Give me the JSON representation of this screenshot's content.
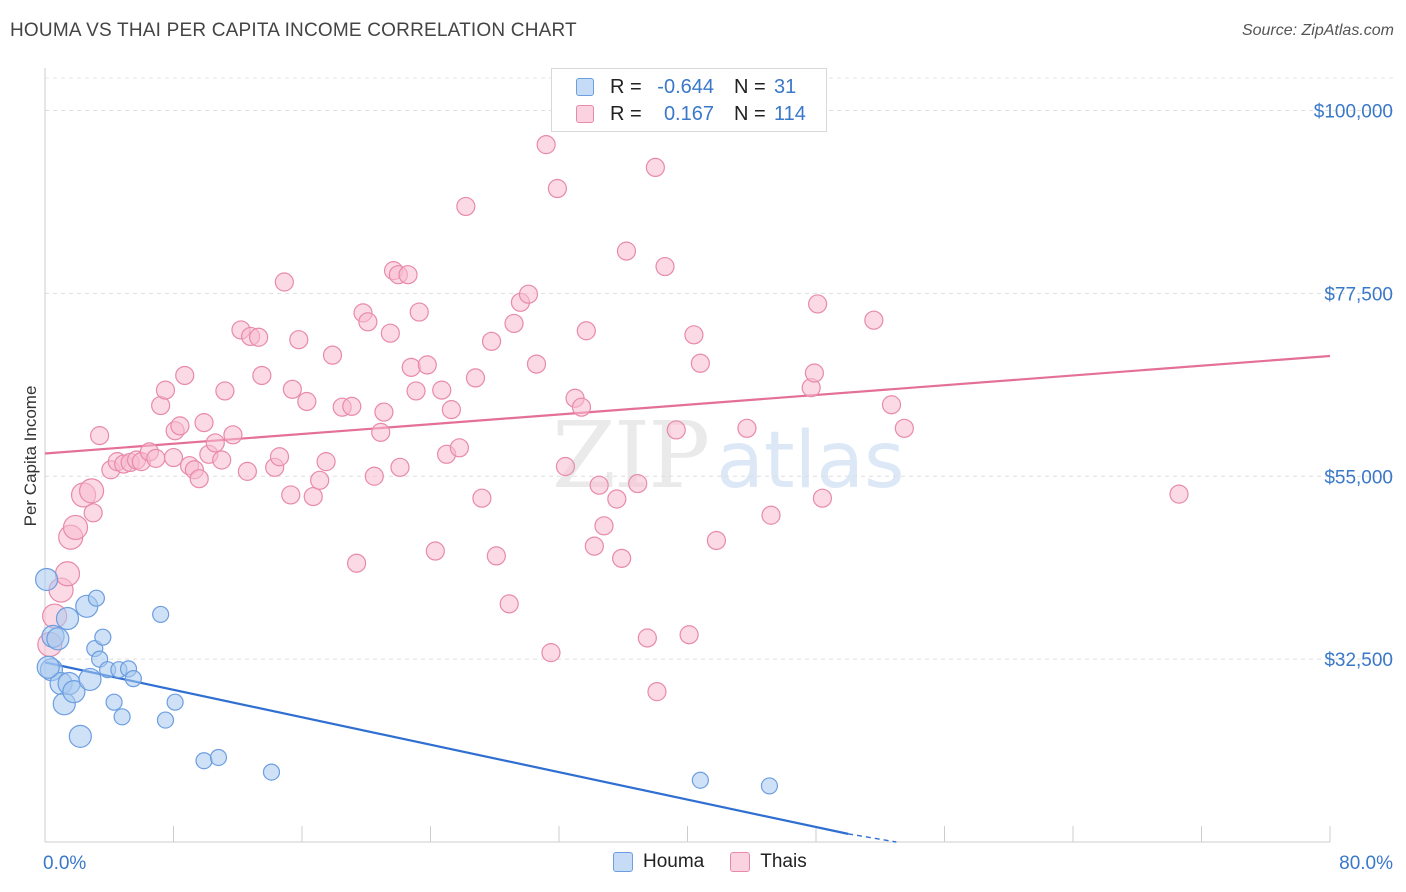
{
  "header": {
    "title": "HOUMA VS THAI PER CAPITA INCOME CORRELATION CHART",
    "source": "Source: ZipAtlas.com"
  },
  "watermark": {
    "zip": "ZIP",
    "atlas": "atlas"
  },
  "legend": {
    "rows": [
      {
        "r_label": "R =",
        "r_value": "-0.644",
        "n_label": "N =",
        "n_value": "31",
        "color": "#a8c8f0",
        "border": "#6c9ee0"
      },
      {
        "r_label": "R =",
        "r_value": "0.167",
        "n_label": "N =",
        "n_value": "114",
        "color": "#f8bcd0",
        "border": "#e88aa8"
      }
    ]
  },
  "bottom_legend": {
    "houma": "Houma",
    "thais": "Thais"
  },
  "chart_data": {
    "type": "scatter",
    "title": "HOUMA VS THAI PER CAPITA INCOME CORRELATION CHART",
    "xlabel": "",
    "ylabel": "Per Capita Income",
    "xlim": [
      0,
      80
    ],
    "ylim": [
      10000,
      104000
    ],
    "x_tick_labels": [
      "0.0%",
      "80.0%"
    ],
    "y_ticks": [
      32500,
      55000,
      77500,
      100000
    ],
    "y_tick_labels": [
      "$32,500",
      "$55,000",
      "$77,500",
      "$100,000"
    ],
    "grid": true,
    "legend_position": "top-center",
    "series": [
      {
        "name": "Houma",
        "color": "#6c9ee0",
        "fill": "#a8c8f0",
        "trend": {
          "x": [
            0,
            50,
            53
          ],
          "y": [
            32100,
            11000,
            10000
          ],
          "dashed_from": 50
        },
        "points": [
          [
            0.1,
            42300
          ],
          [
            0.4,
            31200
          ],
          [
            0.5,
            35300
          ],
          [
            0.8,
            35000
          ],
          [
            1.0,
            29500
          ],
          [
            1.2,
            27000
          ],
          [
            1.4,
            37500
          ],
          [
            1.5,
            29500
          ],
          [
            1.8,
            28500
          ],
          [
            2.2,
            23000
          ],
          [
            2.6,
            39000
          ],
          [
            2.8,
            30000
          ],
          [
            3.1,
            33800
          ],
          [
            3.2,
            40000
          ],
          [
            3.4,
            32500
          ],
          [
            3.6,
            35200
          ],
          [
            3.9,
            31200
          ],
          [
            4.3,
            27200
          ],
          [
            4.6,
            31200
          ],
          [
            4.8,
            25400
          ],
          [
            5.2,
            31300
          ],
          [
            5.5,
            30100
          ],
          [
            7.2,
            38000
          ],
          [
            7.5,
            25000
          ],
          [
            8.1,
            27200
          ],
          [
            9.9,
            20000
          ],
          [
            10.8,
            20400
          ],
          [
            14.1,
            18600
          ],
          [
            40.8,
            17600
          ],
          [
            45.1,
            16900
          ],
          [
            0.2,
            31500
          ]
        ]
      },
      {
        "name": "Thais",
        "color": "#e88aa8",
        "fill": "#f8bcd0",
        "trend": {
          "x": [
            0,
            80
          ],
          "y": [
            57800,
            69800
          ]
        },
        "points": [
          [
            0.3,
            34300
          ],
          [
            0.6,
            37800
          ],
          [
            1.0,
            41000
          ],
          [
            1.4,
            43000
          ],
          [
            1.6,
            47500
          ],
          [
            1.9,
            48700
          ],
          [
            2.4,
            52700
          ],
          [
            2.9,
            53200
          ],
          [
            3.0,
            50500
          ],
          [
            3.4,
            60000
          ],
          [
            4.1,
            55800
          ],
          [
            4.5,
            56800
          ],
          [
            4.9,
            56500
          ],
          [
            5.3,
            56700
          ],
          [
            5.7,
            57000
          ],
          [
            6.0,
            56800
          ],
          [
            6.5,
            58000
          ],
          [
            6.9,
            57200
          ],
          [
            7.2,
            63700
          ],
          [
            7.5,
            65600
          ],
          [
            8.0,
            57300
          ],
          [
            8.1,
            60600
          ],
          [
            8.4,
            61200
          ],
          [
            8.7,
            67400
          ],
          [
            9.0,
            56300
          ],
          [
            9.3,
            55800
          ],
          [
            9.6,
            54700
          ],
          [
            9.9,
            61600
          ],
          [
            10.2,
            57700
          ],
          [
            10.6,
            59100
          ],
          [
            11.0,
            57000
          ],
          [
            11.2,
            65500
          ],
          [
            11.7,
            60100
          ],
          [
            12.2,
            73000
          ],
          [
            12.6,
            55600
          ],
          [
            12.8,
            72200
          ],
          [
            13.3,
            72100
          ],
          [
            13.5,
            67400
          ],
          [
            14.3,
            56100
          ],
          [
            14.6,
            57400
          ],
          [
            14.9,
            78900
          ],
          [
            15.3,
            52700
          ],
          [
            15.4,
            65700
          ],
          [
            15.8,
            71800
          ],
          [
            16.3,
            64200
          ],
          [
            16.7,
            52500
          ],
          [
            17.1,
            54500
          ],
          [
            17.5,
            56800
          ],
          [
            17.9,
            69900
          ],
          [
            18.5,
            63500
          ],
          [
            19.1,
            63600
          ],
          [
            19.4,
            44300
          ],
          [
            19.8,
            75100
          ],
          [
            20.1,
            74000
          ],
          [
            20.5,
            55000
          ],
          [
            20.9,
            60400
          ],
          [
            21.1,
            62900
          ],
          [
            21.5,
            72600
          ],
          [
            21.7,
            80300
          ],
          [
            22.0,
            79800
          ],
          [
            22.6,
            79800
          ],
          [
            22.8,
            68400
          ],
          [
            23.1,
            65500
          ],
          [
            23.3,
            75200
          ],
          [
            23.8,
            68700
          ],
          [
            24.3,
            45800
          ],
          [
            24.7,
            65600
          ],
          [
            25.0,
            57700
          ],
          [
            25.3,
            63200
          ],
          [
            25.8,
            58500
          ],
          [
            26.2,
            88200
          ],
          [
            26.8,
            67100
          ],
          [
            27.2,
            52300
          ],
          [
            27.8,
            71600
          ],
          [
            28.1,
            45200
          ],
          [
            28.9,
            39300
          ],
          [
            29.2,
            73800
          ],
          [
            29.6,
            76400
          ],
          [
            30.1,
            77400
          ],
          [
            30.6,
            68800
          ],
          [
            31.2,
            95800
          ],
          [
            31.5,
            33300
          ],
          [
            31.9,
            90400
          ],
          [
            32.4,
            56200
          ],
          [
            33.0,
            64600
          ],
          [
            33.4,
            63500
          ],
          [
            33.7,
            72900
          ],
          [
            34.2,
            46400
          ],
          [
            34.5,
            53900
          ],
          [
            34.8,
            48900
          ],
          [
            35.6,
            52200
          ],
          [
            35.9,
            44900
          ],
          [
            36.2,
            82700
          ],
          [
            36.9,
            54100
          ],
          [
            37.5,
            35100
          ],
          [
            38.0,
            93000
          ],
          [
            38.1,
            28500
          ],
          [
            38.6,
            80800
          ],
          [
            39.3,
            60700
          ],
          [
            40.1,
            35500
          ],
          [
            40.4,
            72400
          ],
          [
            40.8,
            68900
          ],
          [
            41.8,
            47100
          ],
          [
            43.7,
            60900
          ],
          [
            45.2,
            50200
          ],
          [
            47.7,
            65900
          ],
          [
            47.9,
            67700
          ],
          [
            48.1,
            76200
          ],
          [
            48.4,
            52300
          ],
          [
            51.6,
            74200
          ],
          [
            52.7,
            63800
          ],
          [
            53.5,
            60900
          ],
          [
            70.6,
            52800
          ],
          [
            22.1,
            56100
          ]
        ]
      }
    ]
  }
}
